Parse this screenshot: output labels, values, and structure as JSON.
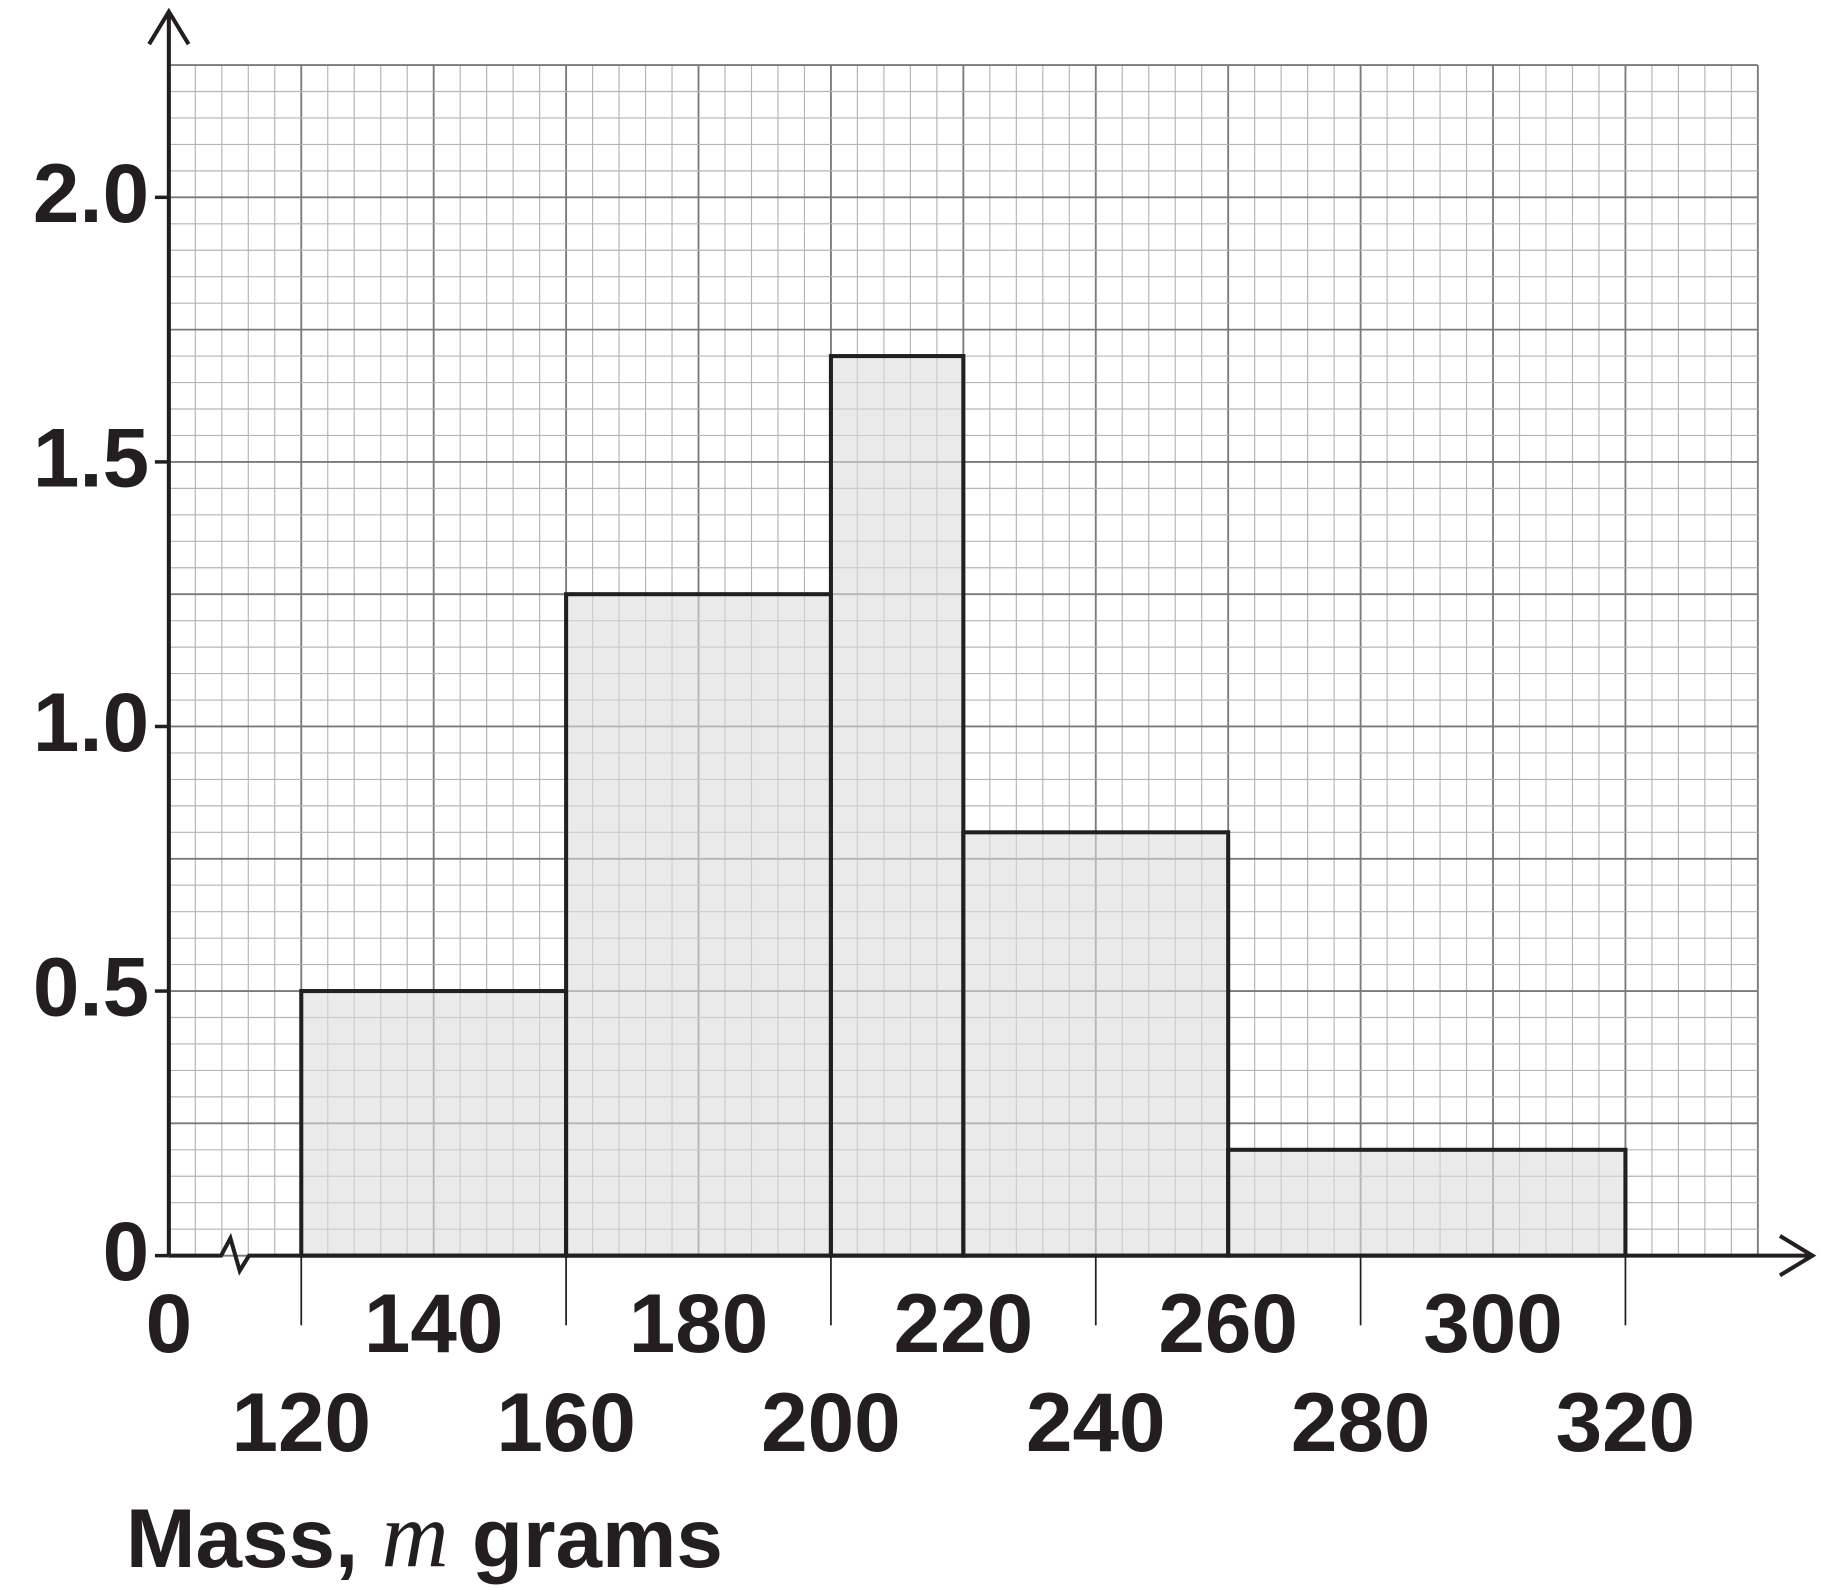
{
  "chart_data": {
    "type": "histogram",
    "bins": [
      120,
      160,
      200,
      220,
      260,
      320
    ],
    "counts": [
      0.5,
      1.25,
      1.7,
      0.8,
      0.2
    ],
    "color": "#dcdcdc",
    "xlim": [
      100,
      340
    ],
    "ylim": [
      0,
      2.25
    ],
    "x_axis_break": true,
    "xticks": [
      0,
      120,
      140,
      160,
      180,
      200,
      220,
      240,
      260,
      280,
      300,
      320
    ],
    "yticks": [
      0,
      0.5,
      {
        "value": 1,
        "label": "1.0"
      },
      {
        "value": 1.5,
        "label": "1.5"
      },
      {
        "value": 2,
        "label": "2.0"
      }
    ],
    "grid": true,
    "xlabel": [
      "Mass, ",
      "m",
      " grams"
    ]
  }
}
